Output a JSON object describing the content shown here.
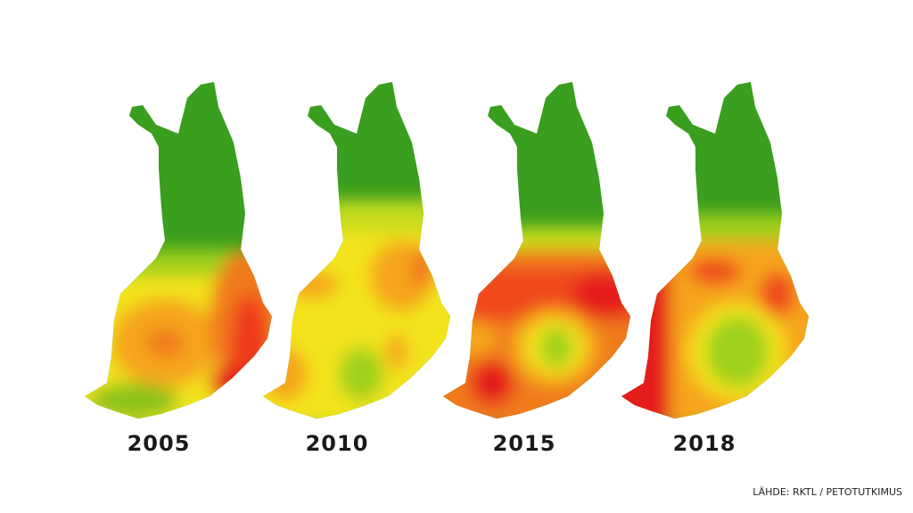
{
  "maps": [
    {
      "label": "2005"
    },
    {
      "label": "2010"
    },
    {
      "label": "2015"
    },
    {
      "label": "2018"
    }
  ],
  "source": "LÄHDE: RKTL / PETOTUTKIMUS"
}
